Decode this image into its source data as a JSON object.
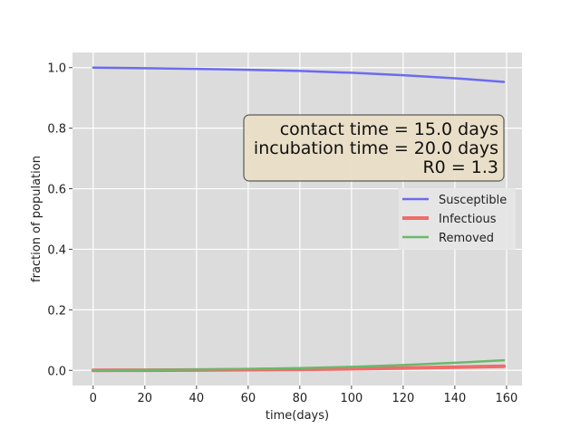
{
  "chart_data": {
    "type": "line",
    "xlabel": "time(days)",
    "ylabel": "fraction of population",
    "xlim": [
      -8,
      166
    ],
    "ylim": [
      -0.05,
      1.05
    ],
    "xticks": [
      0,
      20,
      40,
      60,
      80,
      100,
      120,
      140,
      160
    ],
    "yticks": [
      0.0,
      0.2,
      0.4,
      0.6,
      0.8,
      1.0
    ],
    "grid": true,
    "legend": "right",
    "x": [
      0,
      20,
      40,
      60,
      80,
      100,
      120,
      140,
      159
    ],
    "series": [
      {
        "name": "Susceptible",
        "color": "#6b6bf0",
        "values": [
          1.0,
          0.998,
          0.996,
          0.993,
          0.989,
          0.983,
          0.975,
          0.965,
          0.953
        ]
      },
      {
        "name": "Infectious",
        "color": "#f06b6b",
        "values": [
          0.0,
          0.0006,
          0.0013,
          0.0022,
          0.0035,
          0.0052,
          0.0075,
          0.0105,
          0.0135
        ]
      },
      {
        "name": "Removed",
        "color": "#6bb86b",
        "values": [
          0.0,
          0.0012,
          0.0027,
          0.0048,
          0.0076,
          0.0118,
          0.0175,
          0.025,
          0.0335
        ]
      }
    ],
    "annotation": {
      "lines": [
        "contact time = 15.0 days",
        "incubation time = 20.0 days",
        "R0 = 1.3"
      ],
      "bg": "#eadfc6"
    }
  }
}
